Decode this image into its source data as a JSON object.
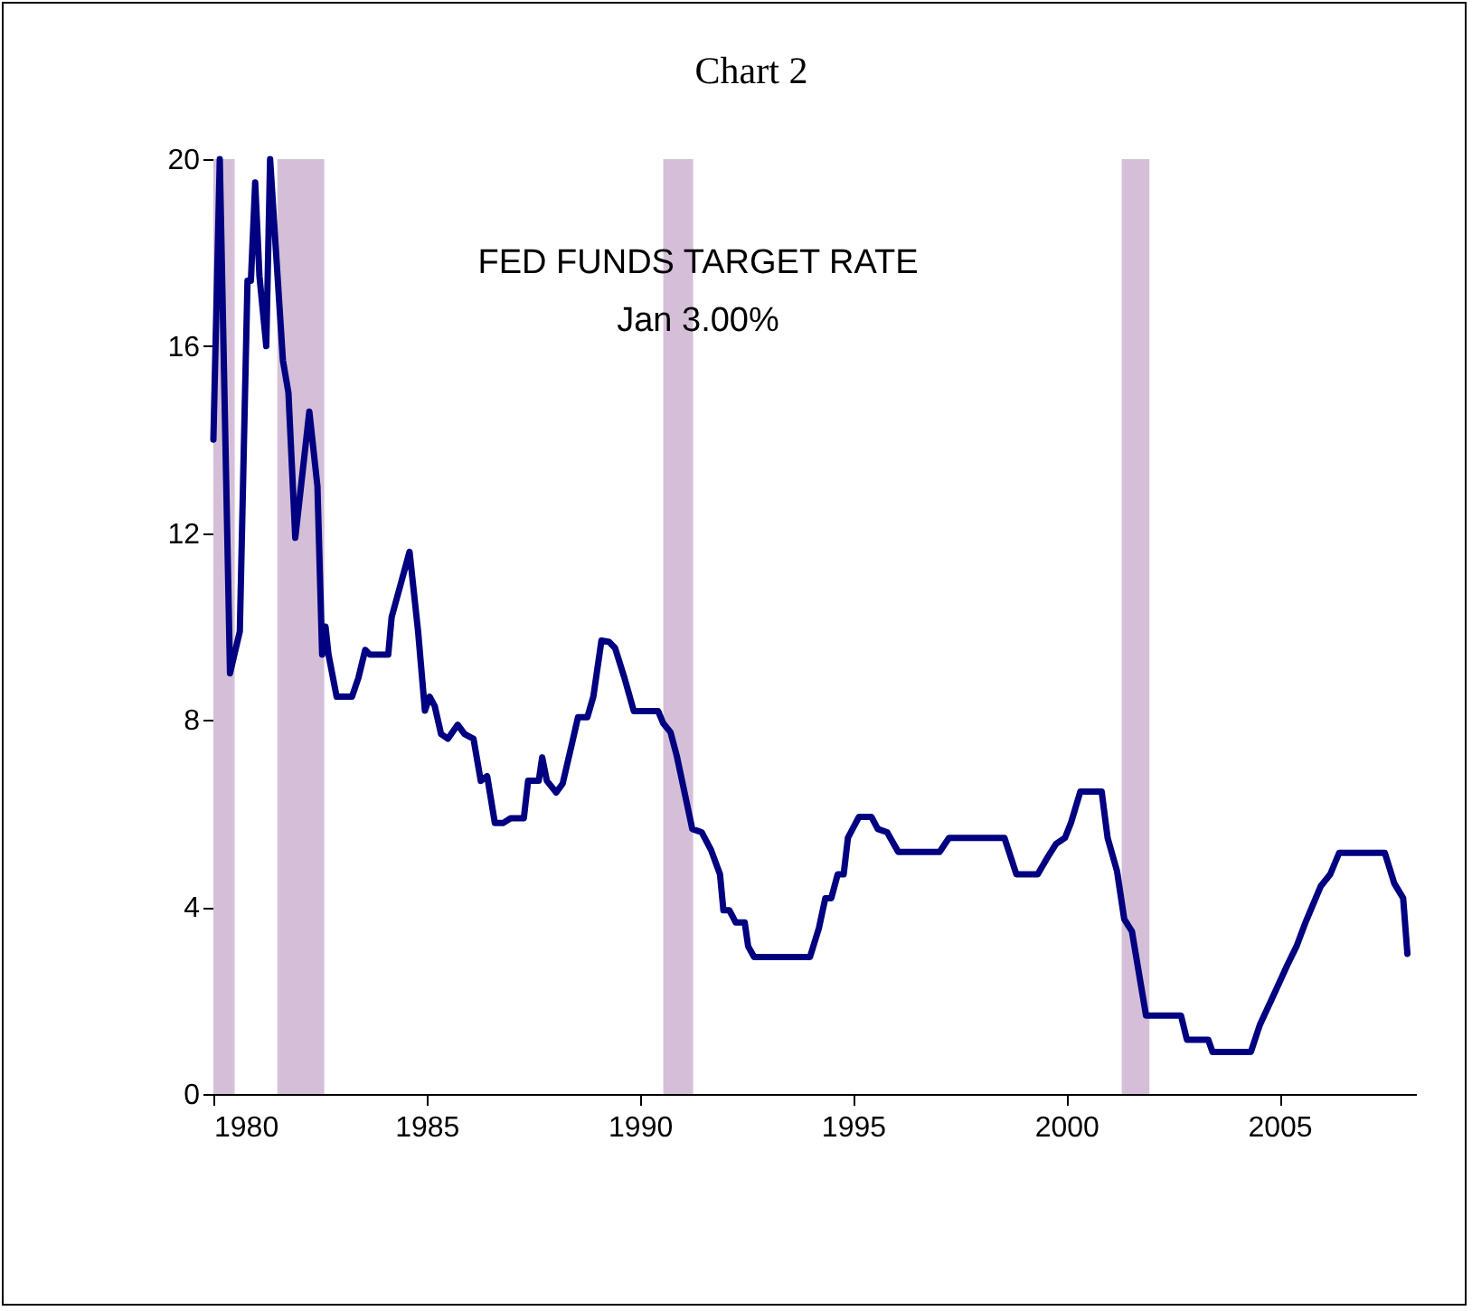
{
  "chart_data": {
    "type": "line",
    "title": "Chart 2",
    "annotations": [
      "FED FUNDS TARGET RATE",
      "Jan  3.00%"
    ],
    "x": [
      1980.0,
      1980.15,
      1980.39,
      1980.62,
      1980.8,
      1980.88,
      1980.98,
      1981.08,
      1981.24,
      1981.33,
      1981.63,
      1981.76,
      1981.92,
      1982.25,
      1982.44,
      1982.55,
      1982.63,
      1982.7,
      1982.89,
      1983.25,
      1983.4,
      1983.56,
      1983.67,
      1984.1,
      1984.18,
      1984.6,
      1984.8,
      1984.96,
      1985.07,
      1985.19,
      1985.34,
      1985.5,
      1985.73,
      1985.89,
      1986.1,
      1986.27,
      1986.42,
      1986.6,
      1986.8,
      1986.97,
      1987.28,
      1987.38,
      1987.63,
      1987.71,
      1987.82,
      1988.04,
      1988.19,
      1988.41,
      1988.55,
      1988.77,
      1988.91,
      1989.1,
      1989.28,
      1989.42,
      1989.64,
      1989.86,
      1990.43,
      1990.55,
      1990.72,
      1990.87,
      1991.23,
      1991.45,
      1991.67,
      1991.88,
      1991.96,
      1992.1,
      1992.25,
      1992.46,
      1992.54,
      1992.68,
      1993.99,
      1994.2,
      1994.35,
      1994.49,
      1994.64,
      1994.78,
      1994.88,
      1995.14,
      1995.43,
      1995.58,
      1995.8,
      1996.06,
      1997.03,
      1997.25,
      1998.55,
      1998.83,
      1999.33,
      1999.54,
      1999.76,
      1999.97,
      2000.11,
      2000.33,
      2000.83,
      2000.97,
      2001.19,
      2001.36,
      2001.54,
      2001.87,
      2002.69,
      2002.83,
      2003.33,
      2003.43,
      2004.33,
      2004.54,
      2004.9,
      2005.19,
      2005.4,
      2005.61,
      2005.97,
      2006.19,
      2006.4,
      2007.47,
      2007.69,
      2007.9,
      2008.0
    ],
    "series": [
      {
        "color": "#000080",
        "values": [
          14.0,
          20.0,
          9.0,
          9.9,
          17.4,
          17.4,
          19.5,
          17.5,
          16.0,
          20.0,
          15.7,
          15.0,
          11.9,
          14.6,
          13.0,
          9.4,
          10.0,
          9.4,
          8.5,
          8.5,
          8.9,
          9.5,
          9.4,
          9.4,
          10.2,
          11.6,
          9.9,
          8.2,
          8.5,
          8.3,
          7.7,
          7.6,
          7.9,
          7.7,
          7.6,
          6.7,
          6.8,
          5.8,
          5.8,
          5.9,
          5.9,
          6.7,
          6.7,
          7.2,
          6.7,
          6.45,
          6.64,
          7.5,
          8.06,
          8.06,
          8.5,
          9.7,
          9.67,
          9.54,
          8.9,
          8.19,
          8.19,
          7.93,
          7.74,
          7.22,
          5.67,
          5.6,
          5.22,
          4.7,
          3.93,
          3.93,
          3.67,
          3.67,
          3.16,
          2.93,
          2.93,
          3.55,
          4.19,
          4.19,
          4.7,
          4.7,
          5.48,
          5.93,
          5.93,
          5.67,
          5.6,
          5.18,
          5.18,
          5.48,
          5.48,
          4.7,
          4.7,
          5.03,
          5.35,
          5.48,
          5.8,
          6.47,
          6.47,
          5.48,
          4.77,
          3.74,
          3.48,
          1.68,
          1.68,
          1.16,
          1.16,
          0.9,
          0.9,
          1.48,
          2.19,
          2.77,
          3.16,
          3.67,
          4.45,
          4.7,
          5.16,
          5.16,
          4.51,
          4.19,
          3.0
        ]
      }
    ],
    "xlim": [
      1980,
      2008.2
    ],
    "xticks": [
      1980,
      1985,
      1990,
      1995,
      2000,
      2005
    ],
    "ylim": [
      0,
      20
    ],
    "yticks": [
      0,
      4,
      8,
      12,
      16,
      20
    ],
    "bands": [
      {
        "axis": "x",
        "from": 1980.0,
        "to": 1980.5,
        "color": "#d5bfd8"
      },
      {
        "axis": "x",
        "from": 1981.5,
        "to": 1982.6,
        "color": "#d5bfd8"
      },
      {
        "axis": "x",
        "from": 1990.55,
        "to": 1991.25,
        "color": "#d5bfd8"
      },
      {
        "axis": "x",
        "from": 2001.3,
        "to": 2001.95,
        "color": "#d5bfd8"
      }
    ],
    "grid": false,
    "line_style": "solid",
    "marker": "none"
  }
}
